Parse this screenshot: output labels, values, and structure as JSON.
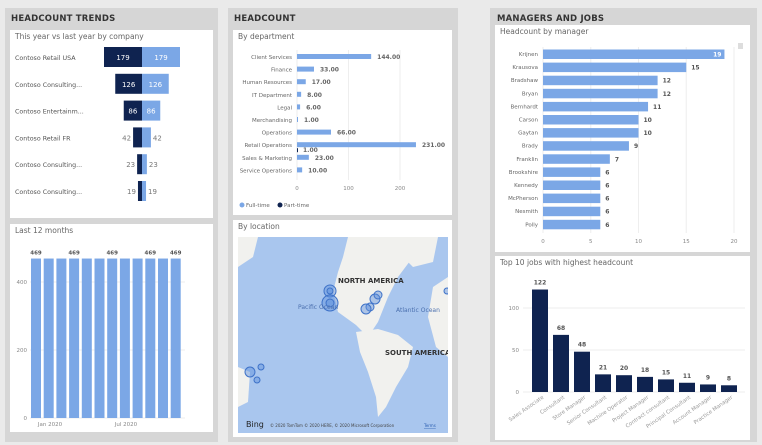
{
  "colors": {
    "light": "#7ba7e6",
    "dark": "#0f2350",
    "map_water": "#a9c6ee",
    "map_land": "#f1f1ee"
  },
  "trends": {
    "title": "HEADCOUNT TRENDS",
    "funnel": {
      "title": "This year vs last year by company",
      "rows": [
        {
          "label": "Contoso Retail USA",
          "this_year": 179,
          "last_year": 179
        },
        {
          "label": "Contoso Consulting...",
          "this_year": 126,
          "last_year": 126
        },
        {
          "label": "Contoso Entertainm...",
          "this_year": 86,
          "last_year": 86
        },
        {
          "label": "Contoso Retail FR",
          "this_year": 42,
          "last_year": 42
        },
        {
          "label": "Contoso Consulting...",
          "this_year": 23,
          "last_year": 23
        },
        {
          "label": "Contoso Consulting...",
          "this_year": 19,
          "last_year": 19
        }
      ]
    },
    "months": {
      "title": "Last 12 months",
      "values": [
        469,
        469,
        469,
        469,
        469,
        469,
        469,
        469,
        469,
        469,
        469,
        469
      ],
      "labels_shown": [
        "469",
        "",
        "",
        "469",
        "",
        "",
        "469",
        "",
        "",
        "469",
        "",
        "469"
      ],
      "y_ticks": [
        "0",
        "200",
        "400"
      ],
      "x_ticks": [
        "Jan 2020",
        "Jul 2020"
      ]
    }
  },
  "headcount": {
    "title": "HEADCOUNT",
    "department": {
      "title": "By department",
      "rows": [
        {
          "label": "Client Services",
          "full": 144,
          "full_label": "144.00"
        },
        {
          "label": "Finance",
          "full": 33,
          "full_label": "33.00"
        },
        {
          "label": "Human Resources",
          "full": 17,
          "full_label": "17.00"
        },
        {
          "label": "IT Department",
          "full": 8,
          "full_label": "8.00"
        },
        {
          "label": "Legal",
          "full": 6,
          "full_label": "6.00"
        },
        {
          "label": "Merchandising",
          "full": 1,
          "full_label": "1.00"
        },
        {
          "label": "Operations",
          "full": 66,
          "full_label": "66.00"
        },
        {
          "label": "Retail Operations",
          "full": 231,
          "full_label": "231.00",
          "part": 1,
          "part_label": "1.00"
        },
        {
          "label": "Sales & Marketing",
          "full": 23,
          "full_label": "23.00"
        },
        {
          "label": "Service Operations",
          "full": 10,
          "full_label": "10.00"
        }
      ],
      "x_ticks": [
        "0",
        "100",
        "200"
      ],
      "legend": [
        "Full-time",
        "Part-time"
      ]
    },
    "location": {
      "title": "By location",
      "labels": {
        "na": "NORTH AMERICA",
        "sa": "SOUTH AMERICA",
        "pacific": "Pacific Ocean",
        "atlantic": "Atlantic Ocean"
      },
      "bing": "Bing",
      "copyright": "© 2020 TomTom © 2020 HERE, © 2020 Microsoft Corporation",
      "terms": "Terms"
    }
  },
  "managers": {
    "title": "MANAGERS AND JOBS",
    "by_manager": {
      "title": "Headcount by manager",
      "rows": [
        {
          "label": "Krijnen",
          "value": 19
        },
        {
          "label": "Krausova",
          "value": 15
        },
        {
          "label": "Bradshaw",
          "value": 12
        },
        {
          "label": "Bryan",
          "value": 12
        },
        {
          "label": "Bernhardt",
          "value": 11
        },
        {
          "label": "Carson",
          "value": 10
        },
        {
          "label": "Gaytan",
          "value": 10
        },
        {
          "label": "Brady",
          "value": 9
        },
        {
          "label": "Franklin",
          "value": 7
        },
        {
          "label": "Brookshire",
          "value": 6
        },
        {
          "label": "Kennedy",
          "value": 6
        },
        {
          "label": "McPherson",
          "value": 6
        },
        {
          "label": "Nesmith",
          "value": 6
        },
        {
          "label": "Polly",
          "value": 6
        }
      ],
      "x_ticks": [
        "0",
        "5",
        "10",
        "15",
        "20"
      ]
    },
    "jobs": {
      "title": "Top 10 jobs with highest headcount",
      "rows": [
        {
          "label": "Sales Associate",
          "value": 122
        },
        {
          "label": "Consultant",
          "value": 68
        },
        {
          "label": "Store Manager",
          "value": 48
        },
        {
          "label": "Senior Consultant",
          "value": 21
        },
        {
          "label": "Machine Operator",
          "value": 20
        },
        {
          "label": "Project Manager",
          "value": 18
        },
        {
          "label": "Contract consultant",
          "value": 15
        },
        {
          "label": "Principal Consultant",
          "value": 11
        },
        {
          "label": "Account Manager",
          "value": 9
        },
        {
          "label": "Practice Manager",
          "value": 8
        }
      ],
      "y_ticks": [
        "0",
        "50",
        "100"
      ]
    }
  }
}
